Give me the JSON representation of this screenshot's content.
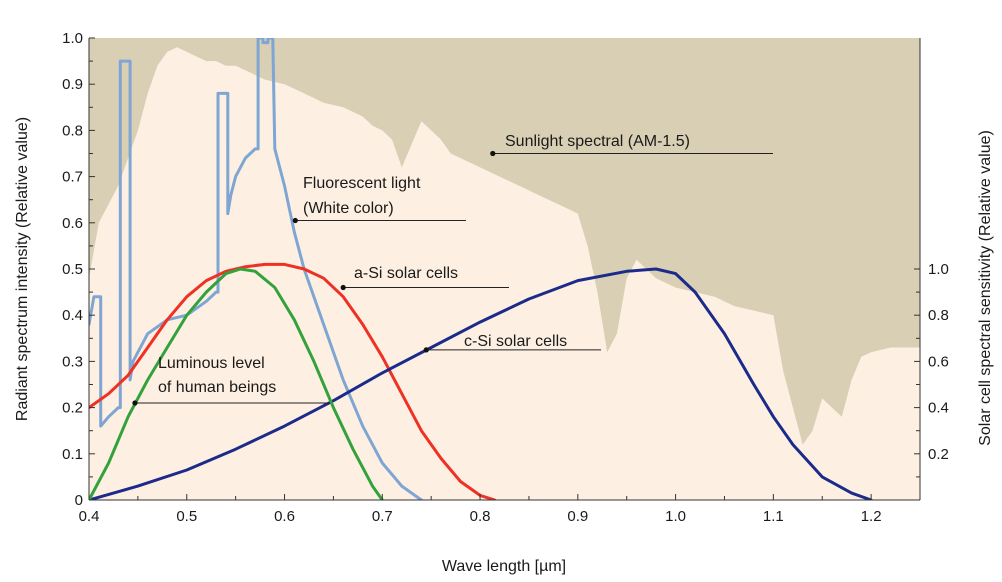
{
  "chart_data": {
    "type": "line",
    "xlabel": "Wave length [µm]",
    "ylabel_left": "Radiant spectrum intensity (Relative value)",
    "ylabel_right": "Solar cell spectral sensitivity (Relative value)",
    "xlim": [
      0.4,
      1.25
    ],
    "ylim_left": [
      0,
      1.0
    ],
    "ylim_right": [
      0,
      2.0
    ],
    "x_ticks": [
      "0.4",
      "0.5",
      "0.6",
      "0.7",
      "0.8",
      "0.9",
      "1.0",
      "1.1",
      "1.2"
    ],
    "y_left_ticks": [
      "0",
      "0.1",
      "0.2",
      "0.3",
      "0.4",
      "0.5",
      "0.6",
      "0.7",
      "0.8",
      "0.9",
      "1.0"
    ],
    "y_right_ticks": [
      "0.2",
      "0.4",
      "0.6",
      "0.8",
      "1.0"
    ],
    "grid": false,
    "colors": {
      "sunlight_fill": "#d8cfb4",
      "plot_background": "#fdf0e2",
      "fluorescent": "#7fa6d3",
      "a_si": "#ee3124",
      "c_si": "#1c2b8a",
      "luminous": "#33a23c",
      "leader": "#222222"
    },
    "series": [
      {
        "name": "Sunlight spectral (AM-1.5)",
        "axis": "left",
        "kind": "area",
        "x": [
          0.4,
          0.41,
          0.42,
          0.43,
          0.44,
          0.45,
          0.46,
          0.47,
          0.48,
          0.49,
          0.5,
          0.51,
          0.52,
          0.53,
          0.54,
          0.55,
          0.56,
          0.57,
          0.58,
          0.6,
          0.62,
          0.64,
          0.66,
          0.68,
          0.69,
          0.7,
          0.71,
          0.72,
          0.73,
          0.74,
          0.75,
          0.76,
          0.77,
          0.78,
          0.8,
          0.82,
          0.84,
          0.86,
          0.88,
          0.9,
          0.91,
          0.92,
          0.93,
          0.94,
          0.95,
          0.96,
          0.97,
          0.98,
          1.0,
          1.02,
          1.04,
          1.06,
          1.08,
          1.1,
          1.11,
          1.12,
          1.13,
          1.14,
          1.15,
          1.16,
          1.17,
          1.18,
          1.19,
          1.2,
          1.22,
          1.25
        ],
        "y": [
          0.48,
          0.6,
          0.64,
          0.68,
          0.74,
          0.8,
          0.88,
          0.94,
          0.97,
          0.98,
          0.97,
          0.96,
          0.95,
          0.95,
          0.94,
          0.94,
          0.93,
          0.92,
          0.91,
          0.9,
          0.88,
          0.86,
          0.85,
          0.83,
          0.81,
          0.8,
          0.78,
          0.72,
          0.77,
          0.82,
          0.8,
          0.78,
          0.75,
          0.74,
          0.72,
          0.7,
          0.68,
          0.66,
          0.64,
          0.62,
          0.55,
          0.45,
          0.32,
          0.36,
          0.48,
          0.52,
          0.5,
          0.48,
          0.46,
          0.45,
          0.44,
          0.42,
          0.41,
          0.4,
          0.28,
          0.2,
          0.12,
          0.15,
          0.22,
          0.2,
          0.18,
          0.26,
          0.31,
          0.32,
          0.33,
          0.33
        ]
      },
      {
        "name": "Fluorescent light (White color)",
        "axis": "left",
        "kind": "line",
        "x": [
          0.4,
          0.405,
          0.405,
          0.412,
          0.412,
          0.42,
          0.43,
          0.432,
          0.432,
          0.438,
          0.442,
          0.442,
          0.445,
          0.46,
          0.48,
          0.5,
          0.52,
          0.53,
          0.532,
          0.532,
          0.542,
          0.542,
          0.545,
          0.55,
          0.56,
          0.57,
          0.573,
          0.573,
          0.578,
          0.578,
          0.583,
          0.583,
          0.588,
          0.59,
          0.6,
          0.61,
          0.62,
          0.64,
          0.66,
          0.68,
          0.7,
          0.72,
          0.74
        ],
        "y": [
          0.38,
          0.44,
          0.44,
          0.44,
          0.16,
          0.18,
          0.2,
          0.2,
          0.95,
          0.95,
          0.95,
          0.26,
          0.3,
          0.36,
          0.39,
          0.4,
          0.43,
          0.45,
          0.45,
          0.88,
          0.88,
          0.62,
          0.66,
          0.7,
          0.74,
          0.76,
          0.76,
          1.0,
          1.0,
          0.99,
          0.99,
          1.0,
          1.0,
          0.76,
          0.68,
          0.58,
          0.5,
          0.38,
          0.26,
          0.16,
          0.08,
          0.03,
          0.0
        ]
      },
      {
        "name": "a-Si solar cells",
        "axis": "right",
        "kind": "line",
        "x": [
          0.4,
          0.42,
          0.44,
          0.46,
          0.48,
          0.5,
          0.52,
          0.54,
          0.56,
          0.58,
          0.6,
          0.62,
          0.64,
          0.66,
          0.68,
          0.7,
          0.72,
          0.74,
          0.76,
          0.78,
          0.8,
          0.815
        ],
        "y": [
          0.4,
          0.46,
          0.54,
          0.66,
          0.78,
          0.88,
          0.95,
          0.99,
          1.01,
          1.02,
          1.02,
          1.0,
          0.96,
          0.88,
          0.76,
          0.62,
          0.46,
          0.3,
          0.18,
          0.08,
          0.02,
          0.0
        ]
      },
      {
        "name": "c-Si solar cells",
        "axis": "right",
        "kind": "line",
        "x": [
          0.4,
          0.45,
          0.5,
          0.55,
          0.6,
          0.65,
          0.7,
          0.75,
          0.8,
          0.85,
          0.9,
          0.95,
          0.98,
          1.0,
          1.02,
          1.05,
          1.08,
          1.1,
          1.12,
          1.15,
          1.18,
          1.2
        ],
        "y": [
          0.0,
          0.06,
          0.13,
          0.22,
          0.32,
          0.43,
          0.55,
          0.66,
          0.77,
          0.87,
          0.95,
          0.99,
          1.0,
          0.98,
          0.9,
          0.72,
          0.5,
          0.36,
          0.24,
          0.1,
          0.03,
          0.0
        ]
      },
      {
        "name": "Luminous level of human beings",
        "axis": "left",
        "kind": "line",
        "x": [
          0.4,
          0.42,
          0.44,
          0.46,
          0.48,
          0.5,
          0.52,
          0.54,
          0.555,
          0.57,
          0.59,
          0.61,
          0.63,
          0.65,
          0.67,
          0.69,
          0.7
        ],
        "y": [
          0.0,
          0.08,
          0.18,
          0.26,
          0.33,
          0.4,
          0.45,
          0.49,
          0.5,
          0.495,
          0.46,
          0.39,
          0.3,
          0.2,
          0.11,
          0.03,
          0.0
        ]
      }
    ],
    "annotations": [
      {
        "id": "sunlight",
        "lines": [
          "Sunlight spectral (AM-1.5)"
        ],
        "color": "#1a1a1a"
      },
      {
        "id": "fluorescent",
        "lines": [
          "Fluorescent light",
          "(White color)"
        ],
        "color": "#1a1a1a"
      },
      {
        "id": "asi",
        "lines": [
          "a-Si solar cells"
        ],
        "color": "#ee3124"
      },
      {
        "id": "csi",
        "lines": [
          "c-Si solar cells"
        ],
        "color": "#1a1a1a"
      },
      {
        "id": "luminous",
        "lines": [
          "Luminous level",
          "of human beings"
        ],
        "color": "#1a1a1a"
      }
    ]
  }
}
